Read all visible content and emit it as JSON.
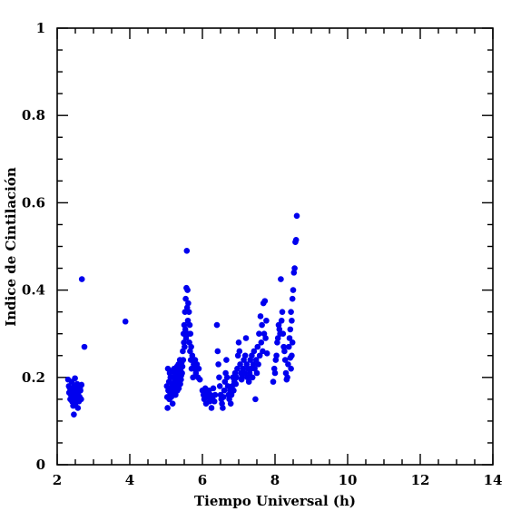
{
  "chart_data": {
    "type": "scatter",
    "title": "",
    "xlabel": "Tiempo Universal (h)",
    "ylabel": "Indice de Cintilación",
    "xlim": [
      2,
      14
    ],
    "ylim": [
      0,
      1
    ],
    "x_ticks": [
      2,
      4,
      6,
      8,
      10,
      12,
      14
    ],
    "y_ticks": [
      0,
      0.2,
      0.4,
      0.6,
      0.8,
      1
    ],
    "x_tick_labels": [
      "2",
      "4",
      "6",
      "8",
      "10",
      "12",
      "14"
    ],
    "y_tick_labels": [
      "0",
      "0.2",
      "0.4",
      "0.6",
      "0.8",
      "1"
    ],
    "grid": false,
    "marker_color": "#0000ee",
    "points": [
      [
        2.3,
        0.195
      ],
      [
        2.32,
        0.18
      ],
      [
        2.33,
        0.165
      ],
      [
        2.35,
        0.175
      ],
      [
        2.36,
        0.15
      ],
      [
        2.38,
        0.16
      ],
      [
        2.4,
        0.19
      ],
      [
        2.41,
        0.145
      ],
      [
        2.43,
        0.17
      ],
      [
        2.44,
        0.135
      ],
      [
        2.45,
        0.155
      ],
      [
        2.46,
        0.115
      ],
      [
        2.47,
        0.18
      ],
      [
        2.48,
        0.165
      ],
      [
        2.49,
        0.198
      ],
      [
        2.5,
        0.14
      ],
      [
        2.51,
        0.16
      ],
      [
        2.52,
        0.175
      ],
      [
        2.54,
        0.15
      ],
      [
        2.55,
        0.185
      ],
      [
        2.56,
        0.17
      ],
      [
        2.57,
        0.13
      ],
      [
        2.58,
        0.16
      ],
      [
        2.6,
        0.145
      ],
      [
        2.61,
        0.18
      ],
      [
        2.62,
        0.155
      ],
      [
        2.63,
        0.175
      ],
      [
        2.64,
        0.17
      ],
      [
        2.66,
        0.15
      ],
      [
        2.67,
        0.183
      ],
      [
        2.68,
        0.425
      ],
      [
        2.75,
        0.27
      ],
      [
        3.88,
        0.328
      ],
      [
        5.02,
        0.18
      ],
      [
        5.03,
        0.155
      ],
      [
        5.04,
        0.13
      ],
      [
        5.05,
        0.22
      ],
      [
        5.06,
        0.17
      ],
      [
        5.08,
        0.19
      ],
      [
        5.09,
        0.15
      ],
      [
        5.1,
        0.21
      ],
      [
        5.11,
        0.165
      ],
      [
        5.12,
        0.2
      ],
      [
        5.13,
        0.175
      ],
      [
        5.14,
        0.155
      ],
      [
        5.16,
        0.215
      ],
      [
        5.17,
        0.185
      ],
      [
        5.18,
        0.14
      ],
      [
        5.19,
        0.2
      ],
      [
        5.2,
        0.17
      ],
      [
        5.21,
        0.16
      ],
      [
        5.22,
        0.22
      ],
      [
        5.23,
        0.19
      ],
      [
        5.24,
        0.175
      ],
      [
        5.25,
        0.21
      ],
      [
        5.26,
        0.16
      ],
      [
        5.28,
        0.2
      ],
      [
        5.29,
        0.185
      ],
      [
        5.3,
        0.225
      ],
      [
        5.31,
        0.17
      ],
      [
        5.32,
        0.205
      ],
      [
        5.33,
        0.19
      ],
      [
        5.34,
        0.23
      ],
      [
        5.35,
        0.175
      ],
      [
        5.36,
        0.215
      ],
      [
        5.37,
        0.2
      ],
      [
        5.38,
        0.24
      ],
      [
        5.39,
        0.185
      ],
      [
        5.4,
        0.22
      ],
      [
        5.41,
        0.195
      ],
      [
        5.42,
        0.205
      ],
      [
        5.43,
        0.235
      ],
      [
        5.44,
        0.21
      ],
      [
        5.45,
        0.225
      ],
      [
        5.46,
        0.26
      ],
      [
        5.47,
        0.24
      ],
      [
        5.48,
        0.3
      ],
      [
        5.49,
        0.28
      ],
      [
        5.5,
        0.32
      ],
      [
        5.51,
        0.27
      ],
      [
        5.52,
        0.35
      ],
      [
        5.53,
        0.31
      ],
      [
        5.54,
        0.38
      ],
      [
        5.55,
        0.29
      ],
      [
        5.56,
        0.405
      ],
      [
        5.57,
        0.49
      ],
      [
        5.58,
        0.36
      ],
      [
        5.59,
        0.4
      ],
      [
        5.6,
        0.33
      ],
      [
        5.61,
        0.37
      ],
      [
        5.62,
        0.3
      ],
      [
        5.63,
        0.35
      ],
      [
        5.64,
        0.28
      ],
      [
        5.65,
        0.32
      ],
      [
        5.66,
        0.26
      ],
      [
        5.67,
        0.3
      ],
      [
        5.68,
        0.24
      ],
      [
        5.69,
        0.27
      ],
      [
        5.7,
        0.22
      ],
      [
        5.72,
        0.25
      ],
      [
        5.74,
        0.2
      ],
      [
        5.76,
        0.23
      ],
      [
        5.78,
        0.22
      ],
      [
        5.8,
        0.24
      ],
      [
        5.82,
        0.21
      ],
      [
        5.85,
        0.23
      ],
      [
        5.88,
        0.2
      ],
      [
        5.9,
        0.22
      ],
      [
        5.93,
        0.195
      ],
      [
        6.0,
        0.17
      ],
      [
        6.03,
        0.16
      ],
      [
        6.05,
        0.15
      ],
      [
        6.08,
        0.175
      ],
      [
        6.1,
        0.14
      ],
      [
        6.12,
        0.165
      ],
      [
        6.15,
        0.155
      ],
      [
        6.18,
        0.17
      ],
      [
        6.2,
        0.145
      ],
      [
        6.22,
        0.16
      ],
      [
        6.25,
        0.13
      ],
      [
        6.28,
        0.15
      ],
      [
        6.3,
        0.175
      ],
      [
        6.33,
        0.145
      ],
      [
        6.35,
        0.16
      ],
      [
        6.4,
        0.32
      ],
      [
        6.42,
        0.26
      ],
      [
        6.44,
        0.23
      ],
      [
        6.46,
        0.2
      ],
      [
        6.48,
        0.18
      ],
      [
        6.5,
        0.16
      ],
      [
        6.52,
        0.15
      ],
      [
        6.54,
        0.14
      ],
      [
        6.56,
        0.13
      ],
      [
        6.58,
        0.155
      ],
      [
        6.6,
        0.17
      ],
      [
        6.62,
        0.19
      ],
      [
        6.64,
        0.21
      ],
      [
        6.66,
        0.24
      ],
      [
        6.68,
        0.2
      ],
      [
        6.7,
        0.18
      ],
      [
        6.72,
        0.16
      ],
      [
        6.74,
        0.15
      ],
      [
        6.76,
        0.17
      ],
      [
        6.78,
        0.14
      ],
      [
        6.8,
        0.16
      ],
      [
        6.82,
        0.18
      ],
      [
        6.84,
        0.2
      ],
      [
        6.86,
        0.17
      ],
      [
        6.88,
        0.19
      ],
      [
        6.9,
        0.21
      ],
      [
        6.92,
        0.185
      ],
      [
        6.94,
        0.2
      ],
      [
        6.96,
        0.22
      ],
      [
        6.98,
        0.25
      ],
      [
        7.0,
        0.28
      ],
      [
        7.02,
        0.26
      ],
      [
        7.04,
        0.23
      ],
      [
        7.06,
        0.21
      ],
      [
        7.08,
        0.195
      ],
      [
        7.1,
        0.2
      ],
      [
        7.12,
        0.22
      ],
      [
        7.14,
        0.24
      ],
      [
        7.16,
        0.21
      ],
      [
        7.18,
        0.25
      ],
      [
        7.2,
        0.29
      ],
      [
        7.22,
        0.23
      ],
      [
        7.24,
        0.2
      ],
      [
        7.26,
        0.22
      ],
      [
        7.28,
        0.19
      ],
      [
        7.3,
        0.21
      ],
      [
        7.32,
        0.24
      ],
      [
        7.34,
        0.22
      ],
      [
        7.36,
        0.25
      ],
      [
        7.38,
        0.2
      ],
      [
        7.4,
        0.23
      ],
      [
        7.42,
        0.26
      ],
      [
        7.44,
        0.22
      ],
      [
        7.46,
        0.15
      ],
      [
        7.48,
        0.24
      ],
      [
        7.5,
        0.21
      ],
      [
        7.52,
        0.27
      ],
      [
        7.54,
        0.23
      ],
      [
        7.56,
        0.3
      ],
      [
        7.58,
        0.25
      ],
      [
        7.6,
        0.34
      ],
      [
        7.62,
        0.28
      ],
      [
        7.64,
        0.32
      ],
      [
        7.66,
        0.26
      ],
      [
        7.68,
        0.37
      ],
      [
        7.7,
        0.3
      ],
      [
        7.72,
        0.375
      ],
      [
        7.74,
        0.29
      ],
      [
        7.76,
        0.33
      ],
      [
        7.78,
        0.255
      ],
      [
        7.95,
        0.19
      ],
      [
        7.98,
        0.22
      ],
      [
        8.0,
        0.21
      ],
      [
        8.02,
        0.24
      ],
      [
        8.04,
        0.25
      ],
      [
        8.06,
        0.28
      ],
      [
        8.08,
        0.29
      ],
      [
        8.1,
        0.32
      ],
      [
        8.12,
        0.31
      ],
      [
        8.14,
        0.3
      ],
      [
        8.16,
        0.425
      ],
      [
        8.18,
        0.33
      ],
      [
        8.2,
        0.35
      ],
      [
        8.22,
        0.3
      ],
      [
        8.24,
        0.27
      ],
      [
        8.26,
        0.26
      ],
      [
        8.28,
        0.24
      ],
      [
        8.3,
        0.21
      ],
      [
        8.32,
        0.195
      ],
      [
        8.34,
        0.2
      ],
      [
        8.36,
        0.23
      ],
      [
        8.38,
        0.27
      ],
      [
        8.4,
        0.29
      ],
      [
        8.42,
        0.31
      ],
      [
        8.44,
        0.35
      ],
      [
        8.46,
        0.33
      ],
      [
        8.48,
        0.38
      ],
      [
        8.5,
        0.4
      ],
      [
        8.52,
        0.44
      ],
      [
        8.54,
        0.45
      ],
      [
        8.56,
        0.51
      ],
      [
        8.58,
        0.515
      ],
      [
        8.6,
        0.57
      ],
      [
        8.42,
        0.245
      ],
      [
        8.44,
        0.22
      ],
      [
        8.46,
        0.25
      ],
      [
        8.48,
        0.28
      ]
    ]
  }
}
